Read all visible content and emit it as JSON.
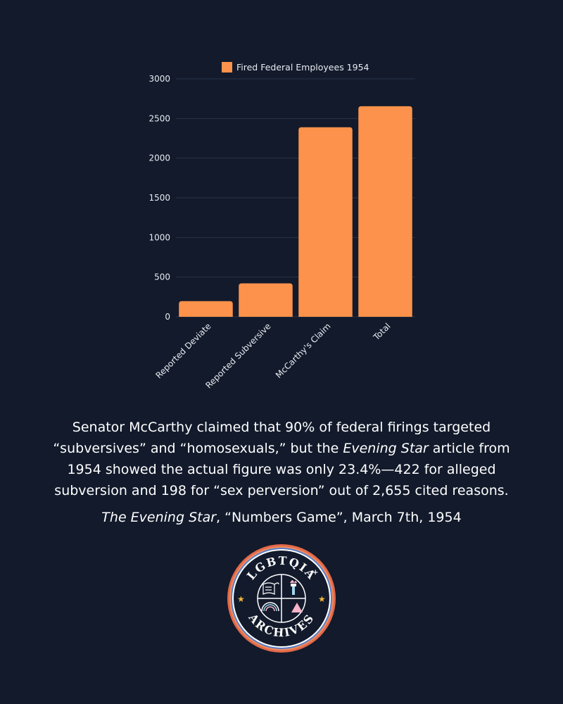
{
  "colors": {
    "background": "#121a2b",
    "bar": "#fc924b",
    "grid": "#2b344a",
    "logo_ring_outer": "#e2694a",
    "logo_star": "#f3b73a"
  },
  "chart_data": {
    "type": "bar",
    "legend": "Fired Federal Employees 1954",
    "categories": [
      "Reported Deviate",
      "Reported Subversive",
      "McCarthy's Claim",
      "Total"
    ],
    "values": [
      198,
      422,
      2390,
      2655
    ],
    "yticks": [
      0,
      500,
      1000,
      1500,
      2000,
      2500,
      3000
    ],
    "ylim": [
      0,
      3000
    ],
    "legend_position": "top-center"
  },
  "caption": {
    "part1": "Senator McCarthy claimed that 90% of federal firings targeted “subversives” and “homosexuals,” but the ",
    "italic": "Evening Star",
    "part2": " article from 1954 showed the actual figure was only 23.4%—422 for alleged subversion and 198 for “sex perversion” out of 2,655 cited reasons."
  },
  "citation": {
    "source_italic": "The Evening Star",
    "rest": ", “Numbers Game”, March 7th, 1954"
  },
  "logo": {
    "top_text": "LGBTQIA",
    "plus": "+",
    "bottom_text": "ARCHIVES"
  }
}
